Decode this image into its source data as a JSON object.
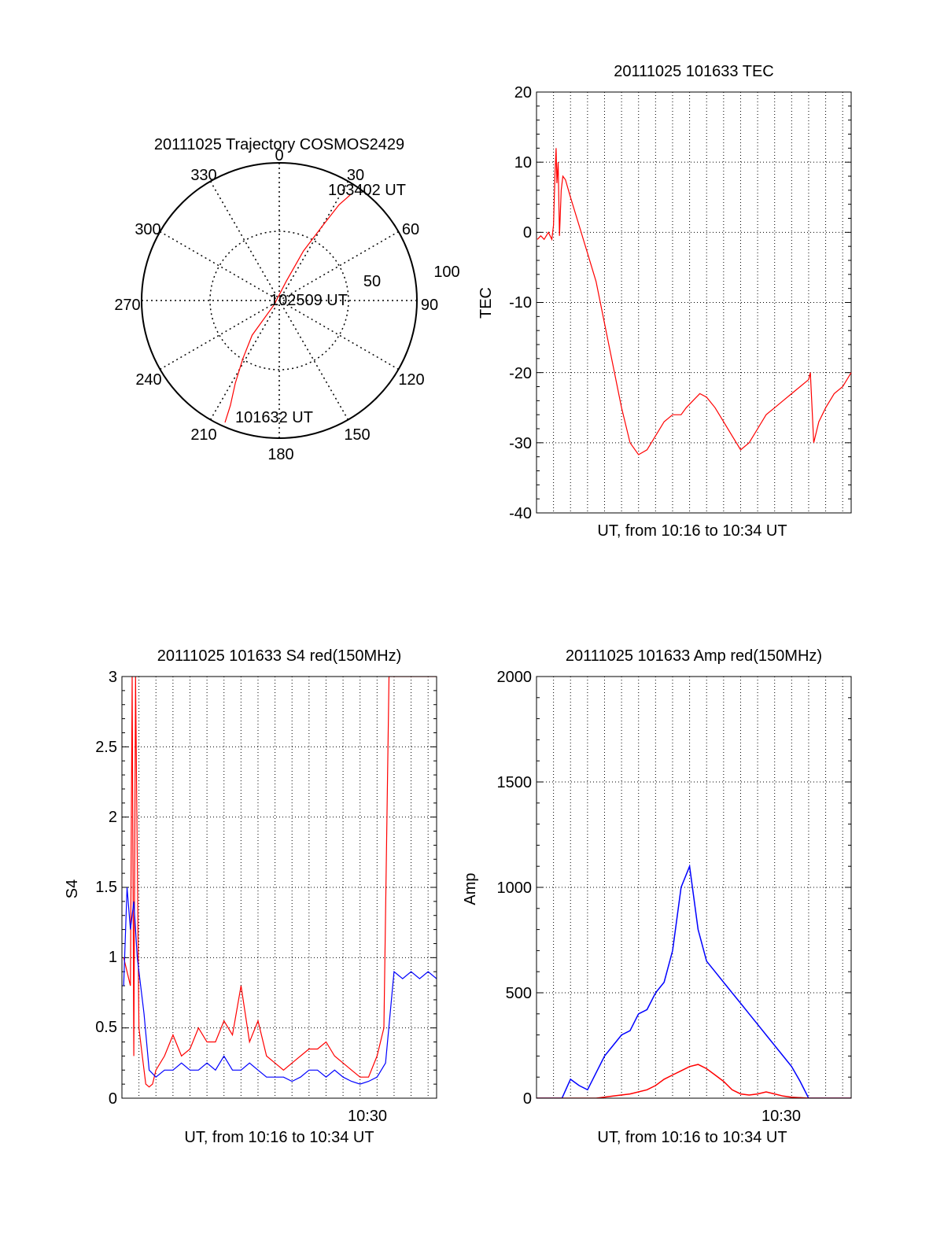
{
  "chart_data": [
    {
      "type": "polar",
      "title": "20111025 Trajectory COSMOS2429",
      "azimuth_labels": [
        "0",
        "30",
        "60",
        "90",
        "120",
        "150",
        "180",
        "210",
        "240",
        "270",
        "300",
        "330"
      ],
      "radial_labels": [
        "50",
        "100"
      ],
      "grid": true,
      "series": [
        {
          "color": "#ff0000",
          "azimuth_deg": [
            204,
            205,
            208,
            212,
            218,
            230,
            20,
            26,
            30,
            32,
            34
          ],
          "radius": [
            97,
            84,
            68,
            50,
            32,
            5,
            15,
            40,
            62,
            82,
            93
          ]
        }
      ],
      "annotations": [
        "103402 UT",
        "102509 UT",
        "101632 UT"
      ]
    },
    {
      "type": "line",
      "title": "20111025 101633 TEC",
      "xlabel": "UT, from 10:16 to 10:34 UT",
      "ylabel": "TEC",
      "xlim": [
        0,
        18.5
      ],
      "ylim": [
        -40,
        20
      ],
      "yticks": [
        "20",
        "10",
        "0",
        "-10",
        "-20",
        "-30",
        "-40"
      ],
      "grid": true,
      "series": [
        {
          "color": "#ff0000",
          "x": [
            0.05,
            0.25,
            0.45,
            0.7,
            0.9,
            1.0,
            1.08,
            1.15,
            1.2,
            1.27,
            1.35,
            1.45,
            1.55,
            1.7,
            2.0,
            2.5,
            3.0,
            3.5,
            4.0,
            4.5,
            5.0,
            5.5,
            6.0,
            6.5,
            7.0,
            7.5,
            8.0,
            8.5,
            8.8,
            9.2,
            9.6,
            10.0,
            10.5,
            11.0,
            11.5,
            12.0,
            12.5,
            13.0,
            13.5,
            14.0,
            14.5,
            15.0,
            15.5,
            16.0,
            16.1,
            16.3,
            16.6,
            17.0,
            17.5,
            18.0,
            18.5
          ],
          "values": [
            -1,
            -0.5,
            -1,
            0,
            -1,
            1,
            8,
            12,
            7,
            10,
            -0.5,
            6,
            8,
            7.5,
            5,
            1,
            -3,
            -7,
            -13,
            -19,
            -25,
            -30,
            -31.7,
            -31,
            -29,
            -27,
            -26,
            -26,
            -25,
            -24,
            -23,
            -23.5,
            -25,
            -27,
            -29,
            -31,
            -30,
            -28,
            -26,
            -25,
            -24,
            -23,
            -22,
            -21,
            -20,
            -30,
            -27,
            -25,
            -23,
            -22,
            -20
          ]
        }
      ]
    },
    {
      "type": "line",
      "title": "20111025 101633 S4 red(150MHz)",
      "xlabel": "UT, from 10:16 to 10:34 UT",
      "ylabel": "S4",
      "xlim": [
        0,
        18.5
      ],
      "ylim": [
        0,
        3
      ],
      "yticks": [
        "3",
        "2.5",
        "2",
        "1.5",
        "1",
        "0.5",
        "0"
      ],
      "xtick_label": "10:30",
      "grid": true,
      "series": [
        {
          "color": "#ff0000",
          "x": [
            0.1,
            0.3,
            0.5,
            0.6,
            0.7,
            0.8,
            1.0,
            1.2,
            1.4,
            1.6,
            1.8,
            2.0,
            2.5,
            3.0,
            3.5,
            4.0,
            4.5,
            5.0,
            5.5,
            6.0,
            6.5,
            7.0,
            7.5,
            8.0,
            8.5,
            9.0,
            9.5,
            10.0,
            10.5,
            11.0,
            11.5,
            12.0,
            12.5,
            13.0,
            13.5,
            14.0,
            14.5,
            15.0,
            15.4,
            15.7,
            16.0,
            16.5,
            17.0,
            17.5,
            18.0,
            18.5
          ],
          "values": [
            1.0,
            0.9,
            0.8,
            3.0,
            0.3,
            3.0,
            0.5,
            0.3,
            0.1,
            0.08,
            0.1,
            0.2,
            0.3,
            0.45,
            0.3,
            0.35,
            0.5,
            0.4,
            0.4,
            0.55,
            0.45,
            0.8,
            0.4,
            0.55,
            0.3,
            0.25,
            0.2,
            0.25,
            0.3,
            0.35,
            0.35,
            0.4,
            0.3,
            0.25,
            0.2,
            0.15,
            0.15,
            0.3,
            0.5,
            3.0,
            3.0,
            3.0,
            3.0,
            3.0,
            3.0,
            3.0
          ]
        },
        {
          "color": "#0000ff",
          "x": [
            0.1,
            0.3,
            0.5,
            0.7,
            0.9,
            1.1,
            1.3,
            1.6,
            2.0,
            2.5,
            3.0,
            3.5,
            4.0,
            4.5,
            5.0,
            5.5,
            6.0,
            6.5,
            7.0,
            7.5,
            8.0,
            8.5,
            9.0,
            9.5,
            10.0,
            10.5,
            11.0,
            11.5,
            12.0,
            12.5,
            13.0,
            13.5,
            14.0,
            14.5,
            15.0,
            15.5,
            16.0,
            16.5,
            17.0,
            17.5,
            18.0,
            18.5
          ],
          "values": [
            0.8,
            1.5,
            1.2,
            1.4,
            1.0,
            0.8,
            0.6,
            0.2,
            0.15,
            0.2,
            0.2,
            0.25,
            0.2,
            0.2,
            0.25,
            0.2,
            0.3,
            0.2,
            0.2,
            0.25,
            0.2,
            0.15,
            0.15,
            0.15,
            0.12,
            0.15,
            0.2,
            0.2,
            0.15,
            0.2,
            0.15,
            0.12,
            0.1,
            0.12,
            0.15,
            0.25,
            0.9,
            0.85,
            0.9,
            0.85,
            0.9,
            0.85
          ]
        }
      ]
    },
    {
      "type": "line",
      "title": "20111025 101633 Amp red(150MHz)",
      "xlabel": "UT, from 10:16 to 10:34 UT",
      "ylabel": "Amp",
      "xlim": [
        0,
        18.5
      ],
      "ylim": [
        0,
        2000
      ],
      "yticks": [
        "2000",
        "1500",
        "1000",
        "500",
        "0"
      ],
      "xtick_label": "10:30",
      "grid": true,
      "series": [
        {
          "color": "#0000ff",
          "x": [
            0,
            1.5,
            2.0,
            2.5,
            3.0,
            3.5,
            4.0,
            4.5,
            5.0,
            5.5,
            6.0,
            6.5,
            7.0,
            7.5,
            8.0,
            8.5,
            9.0,
            9.5,
            10.0,
            10.5,
            11.0,
            11.5,
            12.0,
            12.5,
            13.0,
            13.5,
            14.0,
            14.5,
            15.0,
            15.5,
            16.0,
            17.0,
            18.5
          ],
          "values": [
            0,
            0,
            90,
            60,
            40,
            120,
            200,
            250,
            300,
            320,
            400,
            420,
            500,
            550,
            700,
            1000,
            1100,
            800,
            650,
            600,
            550,
            500,
            450,
            400,
            350,
            300,
            250,
            200,
            150,
            80,
            0,
            0,
            0
          ]
        },
        {
          "color": "#ff0000",
          "x": [
            0,
            3.5,
            4.5,
            5.5,
            6.5,
            7.0,
            7.5,
            8.0,
            8.5,
            9.0,
            9.5,
            10.0,
            10.5,
            11.0,
            11.5,
            12.0,
            12.5,
            13.0,
            13.5,
            14.0,
            14.5,
            15.0,
            16.0,
            18.5
          ],
          "values": [
            0,
            0,
            10,
            20,
            40,
            60,
            90,
            110,
            130,
            150,
            160,
            140,
            110,
            80,
            40,
            20,
            15,
            20,
            30,
            20,
            10,
            5,
            0,
            0
          ]
        }
      ]
    }
  ]
}
